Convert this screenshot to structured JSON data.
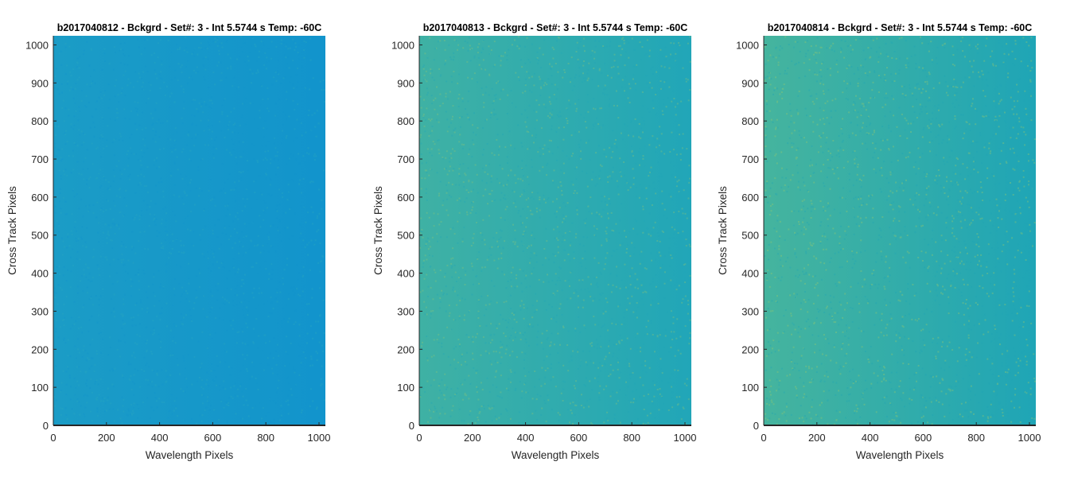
{
  "chart_data": [
    {
      "type": "heatmap",
      "title": "b2017040812 - Bckgrd - Set#: 3 - Int 5.5744 s Temp: -60C",
      "xlabel": "Wavelength Pixels",
      "ylabel": "Cross Track Pixels",
      "xlim": [
        0,
        1024
      ],
      "ylim": [
        0,
        1024
      ],
      "xticks": [
        "0",
        "200",
        "400",
        "600",
        "800",
        "1000"
      ],
      "yticks": [
        "0",
        "100",
        "200",
        "300",
        "400",
        "500",
        "600",
        "700",
        "800",
        "900",
        "1000"
      ],
      "colors": {
        "left": "#1b9cc6",
        "right": "#1294cc",
        "speckle": "#2aa8c0"
      }
    },
    {
      "type": "heatmap",
      "title": "b2017040813 - Bckgrd - Set#: 3 - Int 5.5744 s Temp: -60C",
      "xlabel": "Wavelength Pixels",
      "ylabel": "Cross Track Pixels",
      "xlim": [
        0,
        1024
      ],
      "ylim": [
        0,
        1024
      ],
      "xticks": [
        "0",
        "200",
        "400",
        "600",
        "800",
        "1000"
      ],
      "yticks": [
        "0",
        "100",
        "200",
        "300",
        "400",
        "500",
        "600",
        "700",
        "800",
        "900",
        "1000"
      ],
      "colors": {
        "left": "#3fb1a4",
        "right": "#21a6b8",
        "speckle": "#8cc576"
      }
    },
    {
      "type": "heatmap",
      "title": "b2017040814 - Bckgrd - Set#: 3 - Int 5.5744 s Temp: -60C",
      "xlabel": "Wavelength Pixels",
      "ylabel": "Cross Track Pixels",
      "xlim": [
        0,
        1024
      ],
      "ylim": [
        0,
        1024
      ],
      "xticks": [
        "0",
        "200",
        "400",
        "600",
        "800",
        "1000"
      ],
      "yticks": [
        "0",
        "100",
        "200",
        "300",
        "400",
        "500",
        "600",
        "700",
        "800",
        "900",
        "1000"
      ],
      "colors": {
        "left": "#45b49e",
        "right": "#1fa5b6",
        "speckle": "#9ccb6a"
      }
    }
  ]
}
